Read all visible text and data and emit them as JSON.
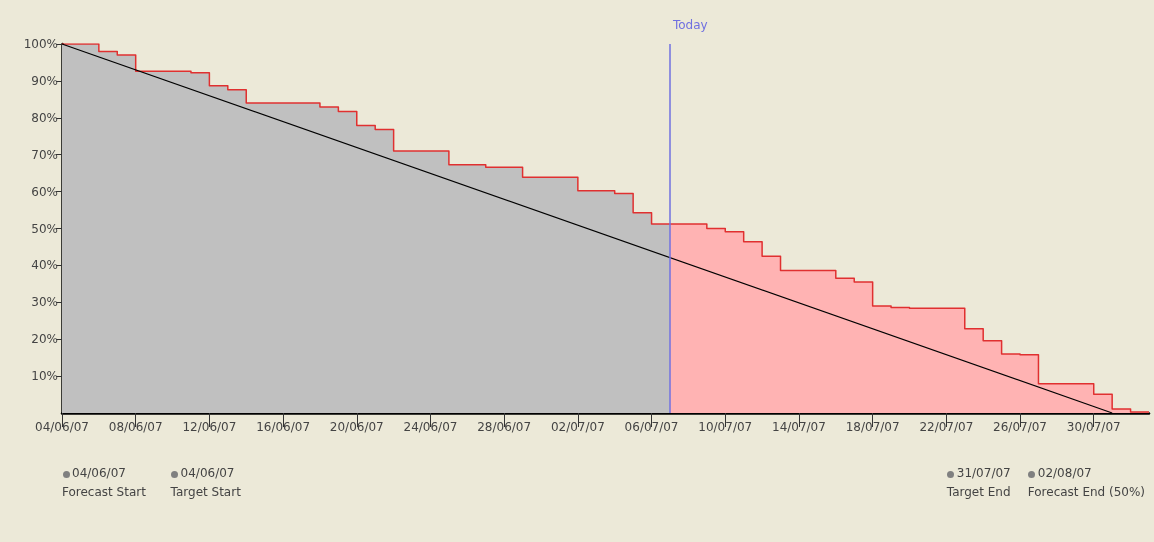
{
  "chart_data": {
    "type": "step",
    "x": [
      "--06-04",
      "--06-06",
      "--06-07",
      "--06-08",
      "--06-11",
      "--06-12",
      "--06-13",
      "--06-14",
      "--06-18",
      "--06-19",
      "--06-20",
      "--06-21",
      "--06-22",
      "--06-25",
      "--06-27",
      "--06-29",
      "--07-02",
      "--07-04",
      "--07-05",
      "--07-06",
      "--07-07",
      "--07-09",
      "--07-10",
      "--07-11",
      "--07-12",
      "--07-13",
      "--07-16",
      "--07-17",
      "--07-18",
      "--07-19",
      "--07-20",
      "--07-23",
      "--07-24",
      "--07-25",
      "--07-26",
      "--07-27",
      "--07-30",
      "--07-31",
      "--08-01",
      "--08-02"
    ],
    "series": [
      {
        "type": "area",
        "color": "#c0c0c0",
        "x": [
          "--06-04",
          "--06-06",
          "--06-07",
          "--06-08",
          "--06-11",
          "--06-12",
          "--06-13",
          "--06-14",
          "--06-18",
          "--06-19",
          "--06-20",
          "--06-21",
          "--06-22",
          "--06-25",
          "--06-27",
          "--06-29",
          "--07-02",
          "--07-04",
          "--07-05",
          "--07-06",
          "--07-07"
        ],
        "values": [
          100,
          98,
          97,
          92.6,
          92.2,
          88.7,
          87.6,
          84,
          82.9,
          81.7,
          77.9,
          76.8,
          71,
          67.3,
          66.6,
          63.9,
          60.2,
          59.5,
          54.3,
          51.2,
          51.2
        ]
      },
      {
        "type": "area",
        "color": "#ffb3b3",
        "x": [
          "--07-07",
          "--07-09",
          "--07-10",
          "--07-11",
          "--07-12",
          "--07-13",
          "--07-16",
          "--07-17",
          "--07-18",
          "--07-19",
          "--07-20",
          "--07-23",
          "--07-24",
          "--07-25",
          "--07-26",
          "--07-27",
          "--07-30",
          "--07-31",
          "--08-01",
          "--08-02"
        ],
        "values": [
          51.2,
          50,
          49.1,
          46.4,
          42.5,
          38.6,
          36.5,
          35.5,
          29,
          28.6,
          28.4,
          22.8,
          19.6,
          16,
          15.8,
          7.9,
          5.1,
          1.1,
          0.3,
          0.3
        ]
      },
      {
        "type": "step",
        "color": "#e03030",
        "values": [
          100,
          98,
          97,
          92.6,
          92.2,
          88.7,
          87.6,
          84,
          82.9,
          81.7,
          77.9,
          76.8,
          71,
          67.3,
          66.6,
          63.9,
          60.2,
          59.5,
          54.3,
          51.2,
          51.2,
          50,
          49.1,
          46.4,
          42.5,
          38.6,
          36.5,
          35.5,
          29,
          28.6,
          28.4,
          22.8,
          19.6,
          16,
          15.8,
          7.9,
          5.1,
          1.1,
          0.3,
          0.3
        ]
      },
      {
        "type": "line",
        "color": "#000000",
        "x": [
          "--06-04",
          "--07-31"
        ],
        "values": [
          100,
          0
        ]
      }
    ],
    "xlim": [
      "--06-04",
      "--08-02"
    ],
    "xticks": [
      {
        "value": "--06-04",
        "label": "04/06/07"
      },
      {
        "value": "--06-08",
        "label": "08/06/07"
      },
      {
        "value": "--06-12",
        "label": "12/06/07"
      },
      {
        "value": "--06-16",
        "label": "16/06/07"
      },
      {
        "value": "--06-20",
        "label": "20/06/07"
      },
      {
        "value": "--06-24",
        "label": "24/06/07"
      },
      {
        "value": "--06-28",
        "label": "28/06/07"
      },
      {
        "value": "--07-02",
        "label": "02/07/07"
      },
      {
        "value": "--07-06",
        "label": "06/07/07"
      },
      {
        "value": "--07-10",
        "label": "10/07/07"
      },
      {
        "value": "--07-14",
        "label": "14/07/07"
      },
      {
        "value": "--07-18",
        "label": "18/07/07"
      },
      {
        "value": "--07-22",
        "label": "22/07/07"
      },
      {
        "value": "--07-26",
        "label": "26/07/07"
      },
      {
        "value": "--07-30",
        "label": "30/07/07"
      }
    ],
    "ylim": [
      0,
      100
    ],
    "yticks": [
      {
        "value": 10,
        "label": "10%"
      },
      {
        "value": 20,
        "label": "20%"
      },
      {
        "value": 30,
        "label": "30%"
      },
      {
        "value": 40,
        "label": "40%"
      },
      {
        "value": 50,
        "label": "50%"
      },
      {
        "value": 60,
        "label": "60%"
      },
      {
        "value": 70,
        "label": "70%"
      },
      {
        "value": 80,
        "label": "80%"
      },
      {
        "value": 90,
        "label": "90%"
      },
      {
        "value": 100,
        "label": "100%"
      }
    ],
    "grid": false,
    "marker": "none",
    "ref_lines": [
      {
        "axis": "x",
        "value": "--07-07",
        "label": "Today",
        "color": "#7070e0"
      }
    ],
    "annotations": [
      "04/06/07\nForecast Start",
      "04/06/07\nTarget Start",
      "31/07/07\nTarget End",
      "02/08/07\nForecast End (50%)"
    ]
  }
}
